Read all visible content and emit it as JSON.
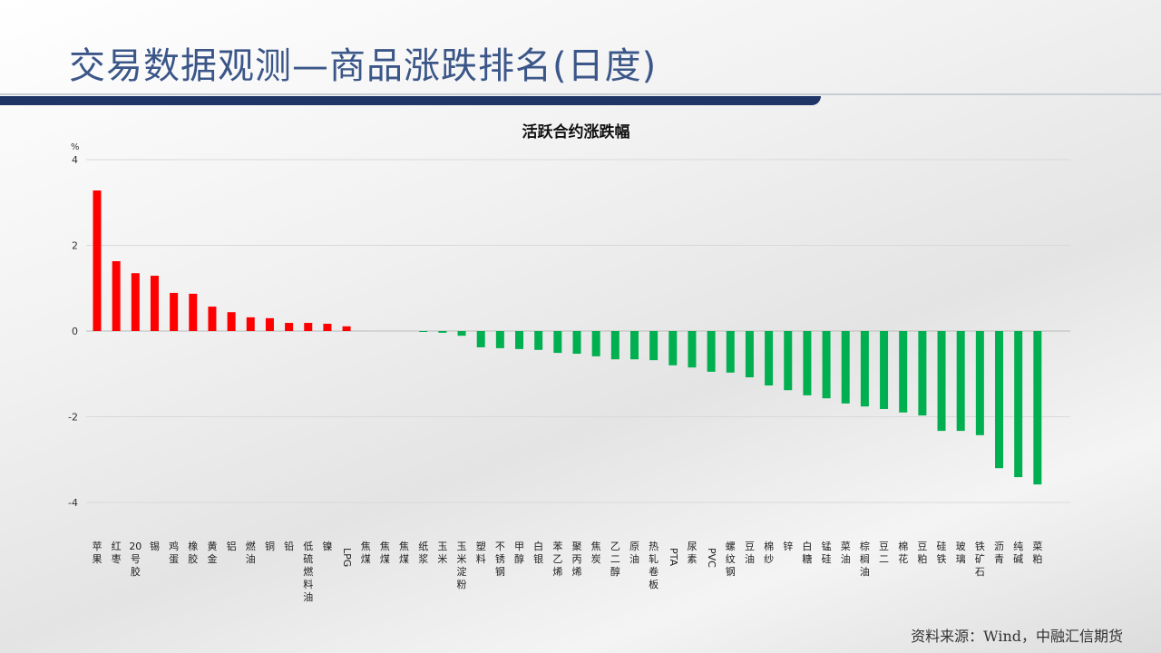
{
  "header": {
    "title": "交易数据观测—商品涨跌排名(日度)"
  },
  "footer": {
    "source": "资料来源：Wind，中融汇信期货"
  },
  "colors": {
    "up": "#ff0000",
    "down": "#00b050",
    "title": "#3b5688"
  },
  "chart_data": {
    "type": "bar",
    "title": "活跃合约涨跌幅",
    "ylabel": "%",
    "ylim": [
      -4,
      4
    ],
    "yticks": [
      4,
      2,
      0,
      -2,
      -4
    ],
    "grid": true,
    "categories": [
      "苹果",
      "红枣",
      "20号胶",
      "锡",
      "鸡蛋",
      "橡胶",
      "黄金",
      "铝",
      "燃油",
      "铜",
      "铅",
      "低硫燃料油",
      "镍",
      "LPG",
      "焦煤",
      "焦煤",
      "焦煤",
      "纸浆",
      "玉米",
      "玉米淀粉",
      "塑料",
      "不锈钢",
      "甲醇",
      "白银",
      "苯乙烯",
      "聚丙烯",
      "焦炭",
      "乙二醇",
      "原油",
      "热轧卷板",
      "PTA",
      "尿素",
      "PVC",
      "螺纹钢",
      "豆油",
      "棉纱",
      "锌",
      "白糖",
      "锰硅",
      "菜油",
      "棕榈油",
      "豆二",
      "棉花",
      "豆粕",
      "硅铁",
      "玻璃",
      "铁矿石",
      "沥青",
      "纯碱",
      "菜粕"
    ],
    "values": [
      3.28,
      1.63,
      1.35,
      1.29,
      0.89,
      0.87,
      0.57,
      0.44,
      0.32,
      0.3,
      0.19,
      0.19,
      0.17,
      0.11,
      0,
      0,
      0,
      -0.02,
      -0.04,
      -0.11,
      -0.38,
      -0.4,
      -0.42,
      -0.44,
      -0.51,
      -0.53,
      -0.59,
      -0.66,
      -0.66,
      -0.68,
      -0.8,
      -0.85,
      -0.95,
      -0.97,
      -1.08,
      -1.27,
      -1.38,
      -1.5,
      -1.57,
      -1.69,
      -1.76,
      -1.82,
      -1.9,
      -1.97,
      -2.33,
      -2.33,
      -2.43,
      -3.2,
      -3.41,
      -3.58
    ]
  }
}
